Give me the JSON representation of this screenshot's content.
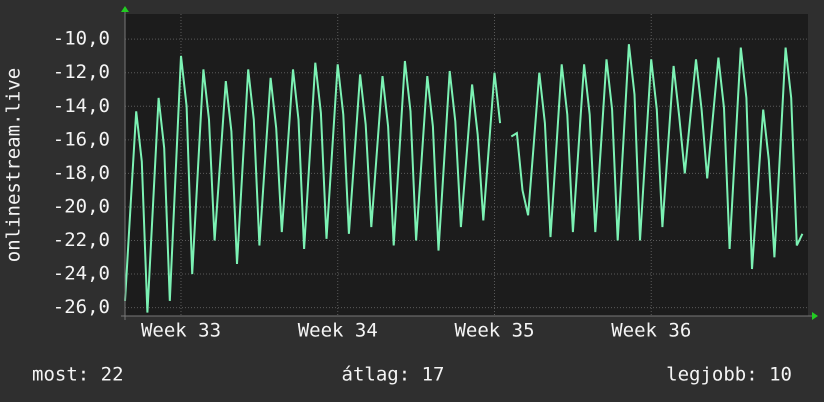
{
  "chart_data": {
    "type": "line",
    "y_label": "onlinestream.live",
    "x": [
      0,
      0.25,
      0.5,
      0.75,
      1,
      1.25,
      1.5,
      1.75,
      2,
      2.25,
      2.5,
      2.75,
      3,
      3.25,
      3.5,
      3.75,
      4,
      4.25,
      4.5,
      4.75,
      5,
      5.25,
      5.5,
      5.75,
      6,
      6.25,
      6.5,
      6.75,
      7,
      7.25,
      7.5,
      7.75,
      8,
      8.25,
      8.5,
      8.75,
      9,
      9.25,
      9.5,
      9.75,
      10,
      10.25,
      10.5,
      10.75,
      11,
      11.25,
      11.5,
      11.75,
      12,
      12.25,
      12.5,
      12.75,
      13,
      13.25,
      13.5,
      13.75,
      14,
      14.25,
      14.5,
      14.75,
      15,
      15.25,
      15.5,
      15.75,
      16,
      16.25,
      16.5,
      16.75,
      17,
      17.25,
      17.5,
      17.75,
      18,
      18.25,
      18.5,
      18.75,
      19,
      19.25,
      19.5,
      19.75,
      20,
      20.25,
      20.5,
      20.75,
      21,
      21.25,
      21.5,
      21.75,
      22,
      22.25,
      22.5,
      22.75,
      23,
      23.25,
      23.5,
      23.75,
      24,
      24.25,
      24.5,
      24.75,
      25,
      25.25,
      25.5,
      25.75,
      26,
      26.25,
      26.5,
      26.75,
      27,
      27.25,
      27.5,
      27.75,
      28,
      28.25,
      28.5,
      28.75,
      29,
      29.25,
      29.5,
      29.75,
      30,
      30.25
    ],
    "series": [
      {
        "color": "#7cf2b4",
        "values": [
          -25.6,
          -19.9,
          -14.3,
          -17.3,
          -26.3,
          -19.9,
          -13.5,
          -16.5,
          -25.6,
          -18.3,
          -11.0,
          -14.0,
          -24.0,
          -17.9,
          -11.8,
          -14.8,
          -22.0,
          -17.3,
          -12.5,
          -15.5,
          -23.4,
          -17.6,
          -11.8,
          -14.8,
          -22.3,
          -17.3,
          -12.3,
          -15.3,
          -21.5,
          -16.7,
          -11.8,
          -14.8,
          -22.5,
          -17.0,
          -11.4,
          -14.4,
          -21.9,
          -16.7,
          -11.5,
          -14.5,
          -21.6,
          -16.9,
          -12.1,
          -15.1,
          -21.2,
          -16.7,
          -12.2,
          -15.2,
          -22.3,
          -16.8,
          -11.3,
          -14.3,
          -22.0,
          -17.1,
          -12.2,
          -15.2,
          -22.6,
          -17.3,
          -11.9,
          -14.9,
          -21.2,
          -17.0,
          -12.7,
          -15.7,
          -20.8,
          -16.4,
          -12.0,
          -15.0,
          null,
          -15.8,
          -15.6,
          -19.0,
          -20.5,
          -16.3,
          -12.0,
          -15.0,
          -21.8,
          -16.7,
          -11.5,
          -14.5,
          -21.5,
          -16.5,
          -11.5,
          -14.5,
          -21.5,
          -16.4,
          -11.2,
          -14.2,
          -22.0,
          -16.2,
          -10.3,
          -13.3,
          -22.0,
          -16.6,
          -11.2,
          -14.2,
          -21.2,
          -16.4,
          -11.6,
          -14.6,
          -18.0,
          -14.6,
          -11.2,
          -14.2,
          -18.3,
          -14.7,
          -11.1,
          -14.1,
          -22.5,
          -16.5,
          -10.5,
          -13.5,
          -23.7,
          -19.0,
          -14.2,
          -17.2,
          -23.0,
          -16.8,
          -10.5,
          -13.5,
          -22.3,
          -21.6
        ]
      }
    ],
    "xlim": [
      0,
      30.5
    ],
    "xticks": [
      {
        "value": 2.5,
        "label": "Week 33"
      },
      {
        "value": 9.5,
        "label": "Week 34"
      },
      {
        "value": 16.5,
        "label": "Week 35"
      },
      {
        "value": 23.5,
        "label": "Week 36"
      }
    ],
    "ylim": [
      -26.5,
      -8.5
    ],
    "yticks": [
      {
        "value": -26,
        "label": "-26,0"
      },
      {
        "value": -24,
        "label": "-24,0"
      },
      {
        "value": -22,
        "label": "-22,0"
      },
      {
        "value": -20,
        "label": "-20,0"
      },
      {
        "value": -18,
        "label": "-18,0"
      },
      {
        "value": -16,
        "label": "-16,0"
      },
      {
        "value": -14,
        "label": "-14,0"
      },
      {
        "value": -12,
        "label": "-12,0"
      },
      {
        "value": -10,
        "label": "-10,0"
      }
    ],
    "grid": true,
    "footer": {
      "last": "most: 22",
      "average": "átlag: 17",
      "best": "legjobb: 10"
    }
  }
}
